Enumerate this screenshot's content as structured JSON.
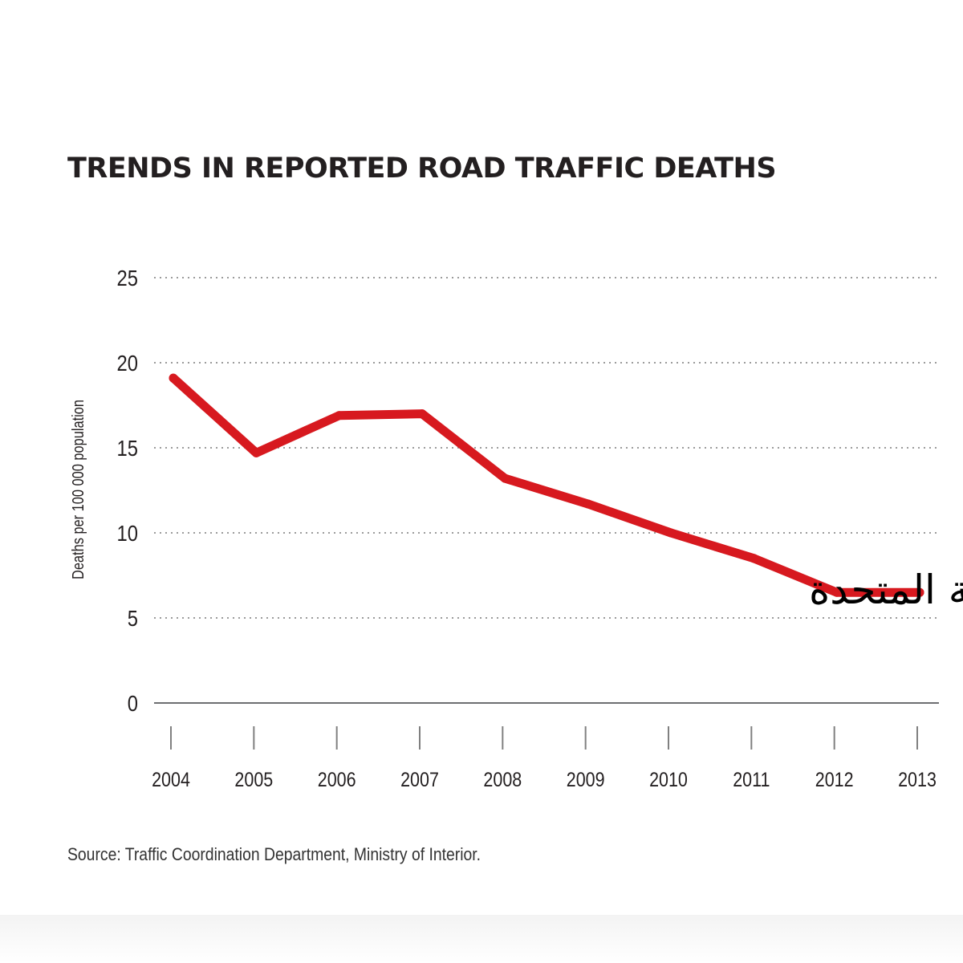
{
  "chart_data": {
    "type": "line",
    "title": "TRENDS IN REPORTED ROAD TRAFFIC DEATHS",
    "ylabel": "Deaths per 100 000 population",
    "xlabel": "",
    "x": [
      "2004",
      "2005",
      "2006",
      "2007",
      "2008",
      "2009",
      "2010",
      "2011",
      "2012",
      "2013"
    ],
    "series": [
      {
        "name": "الإمارات العربية المتحدة",
        "color": "#d7191f",
        "values": [
          19.1,
          14.7,
          16.9,
          17.0,
          13.2,
          11.7,
          10.0,
          8.5,
          6.5,
          6.5
        ]
      }
    ],
    "ylim": [
      0,
      25
    ],
    "yticks": [
      "0",
      "5",
      "10",
      "15",
      "20",
      "25"
    ],
    "grid": true,
    "annotation": "الإمارات العربية المتحدة",
    "source": "Source: Traffic Coordination Department, Ministry of Interior."
  }
}
